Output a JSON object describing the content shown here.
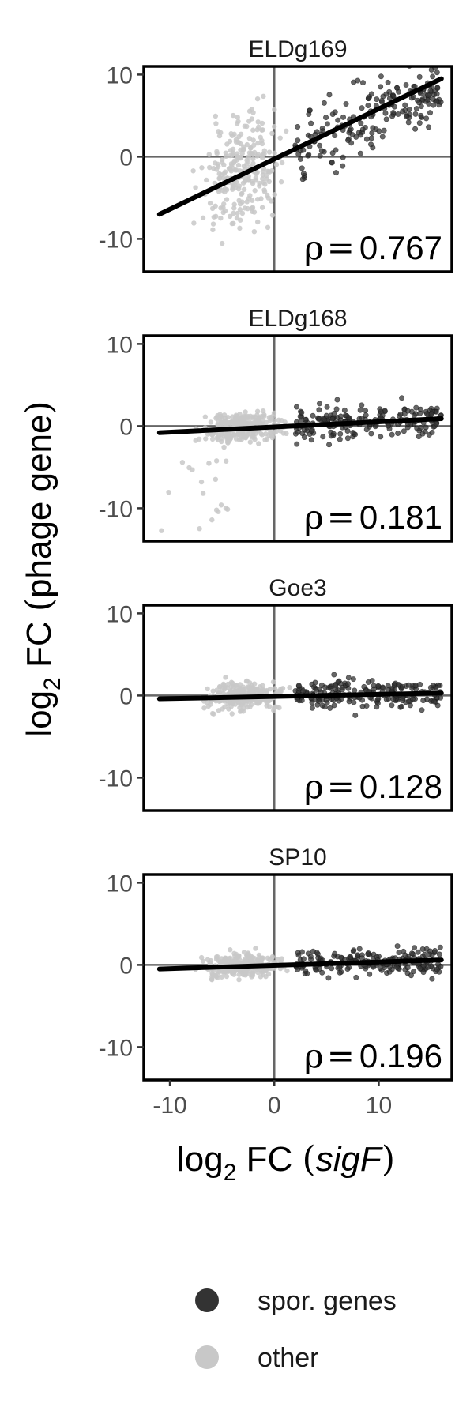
{
  "chart_data": {
    "type": "scatter",
    "xlabel": {
      "prefix": "log",
      "sub": "2",
      "middle": " FC ",
      "italic": "sigF"
    },
    "ylabel": {
      "prefix": "log",
      "sub": "2",
      "middle": " FC ",
      "inner": "phage gene"
    },
    "xlim": [
      -12.5,
      17
    ],
    "ylim": [
      -14,
      11
    ],
    "x_ticks": [
      -10,
      0,
      10
    ],
    "y_ticks": [
      -10,
      0,
      10
    ],
    "panels": [
      {
        "title": "ELDg169",
        "rho_symbol": "ρ",
        "rho_eq": "=",
        "rho": "0.767",
        "fit": {
          "x": [
            -11,
            16
          ],
          "y": [
            -7,
            9.5
          ]
        },
        "spread": 2.6,
        "slope_pts": 0.61,
        "outlier_down": false
      },
      {
        "title": "ELDg168",
        "rho_symbol": "ρ",
        "rho_eq": "=",
        "rho": "0.181",
        "fit": {
          "x": [
            -11,
            16
          ],
          "y": [
            -0.8,
            0.9
          ]
        },
        "spread": 1.4,
        "slope_pts": 0.06,
        "outlier_down": true
      },
      {
        "title": "Goe3",
        "rho_symbol": "ρ",
        "rho_eq": "=",
        "rho": "0.128",
        "fit": {
          "x": [
            -11,
            16
          ],
          "y": [
            -0.4,
            0.3
          ]
        },
        "spread": 1.2,
        "slope_pts": 0.03,
        "outlier_down": false
      },
      {
        "title": "SP10",
        "rho_symbol": "ρ",
        "rho_eq": "=",
        "rho": "0.196",
        "fit": {
          "x": [
            -11,
            16
          ],
          "y": [
            -0.5,
            0.6
          ]
        },
        "spread": 1.1,
        "slope_pts": 0.04,
        "outlier_down": false
      }
    ],
    "legend": [
      {
        "label": "spor. genes",
        "color": "#333333"
      },
      {
        "label": "other",
        "color": "#c8c8c8"
      }
    ],
    "colors": {
      "spor": "#333333",
      "other": "#c8c8c8",
      "fit": "#000000",
      "refline": "#666666"
    }
  }
}
